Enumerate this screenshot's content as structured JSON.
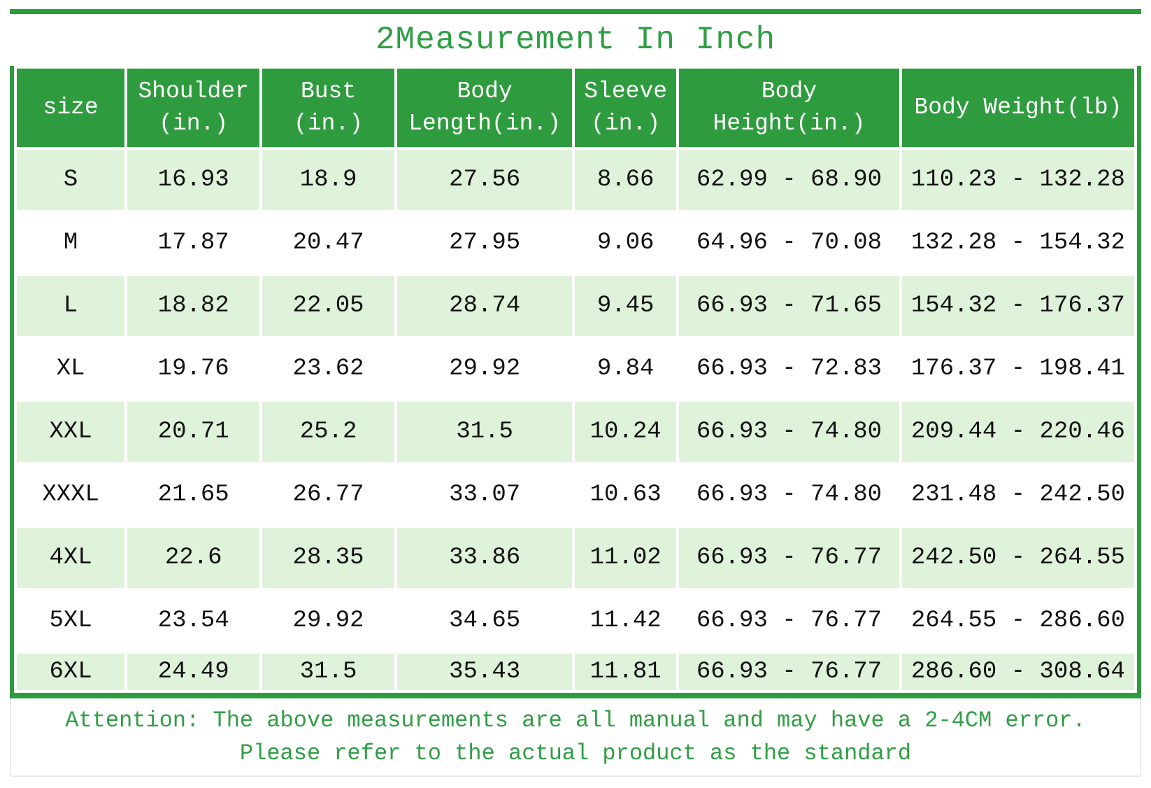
{
  "title": "2Measurement In Inch",
  "attention": {
    "line1": "Attention: The above measurements are all manual and may have a 2-4CM error.",
    "line2": "Please refer to the actual product as the standard"
  },
  "colors": {
    "green": "#2e9b3e",
    "title_green": "#2f9e44",
    "light_row_green": "#dff2da",
    "white": "#ffffff",
    "data_text": "#111111"
  },
  "chart_data": {
    "type": "table",
    "title": "2Measurement In Inch",
    "columns": [
      "size",
      "Shoulder (in.)",
      "Bust (in.)",
      "Body Length(in.)",
      "Sleeve (in.)",
      "Body Height(in.)",
      "Body Weight(lb)"
    ],
    "header_lines": [
      [
        "size"
      ],
      [
        "Shoulder",
        "(in.)"
      ],
      [
        "Bust",
        "(in.)"
      ],
      [
        "Body",
        "Length(in.)"
      ],
      [
        "Sleeve",
        "(in.)"
      ],
      [
        "Body",
        "Height(in.)"
      ],
      [
        "Body Weight(lb)"
      ]
    ],
    "col_widths_pct": [
      9.8,
      12.0,
      12.0,
      15.9,
      9.2,
      20.0,
      21.1
    ],
    "rows": [
      [
        "S",
        "16.93",
        "18.9",
        "27.56",
        "8.66",
        "62.99 - 68.90",
        "110.23 - 132.28"
      ],
      [
        "M",
        "17.87",
        "20.47",
        "27.95",
        "9.06",
        "64.96 - 70.08",
        "132.28 - 154.32"
      ],
      [
        "L",
        "18.82",
        "22.05",
        "28.74",
        "9.45",
        "66.93 - 71.65",
        "154.32 - 176.37"
      ],
      [
        "XL",
        "19.76",
        "23.62",
        "29.92",
        "9.84",
        "66.93 - 72.83",
        "176.37 - 198.41"
      ],
      [
        "XXL",
        "20.71",
        "25.2",
        "31.5",
        "10.24",
        "66.93 - 74.80",
        "209.44 - 220.46"
      ],
      [
        "XXXL",
        "21.65",
        "26.77",
        "33.07",
        "10.63",
        "66.93 - 74.80",
        "231.48 - 242.50"
      ],
      [
        "4XL",
        "22.6",
        "28.35",
        "33.86",
        "11.02",
        "66.93 - 76.77",
        "242.50 - 264.55"
      ],
      [
        "5XL",
        "23.54",
        "29.92",
        "34.65",
        "11.42",
        "66.93 - 76.77",
        "264.55 - 286.60"
      ],
      [
        "6XL",
        "24.49",
        "31.5",
        "35.43",
        "11.81",
        "66.93 - 76.77",
        "286.60 - 308.64"
      ]
    ],
    "footnote": [
      "Attention: The above measurements are all manual and may have a 2-4CM error.",
      "Please refer to the actual product as the standard"
    ],
    "layout_hints": {
      "grid": "white gutters between cells",
      "row_striping": "odd rows light green, even rows white"
    }
  }
}
